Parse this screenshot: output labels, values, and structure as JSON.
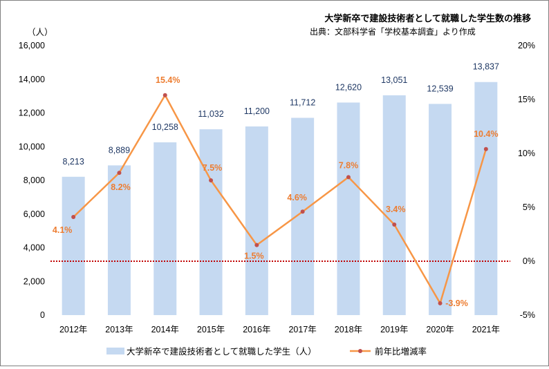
{
  "chart_data": {
    "type": "bar",
    "title": "大学新卒で建設技術者として就職した学生数の推移",
    "subtitle": "出典：文部科学省「学校基本調査」より作成",
    "y_unit_label": "（人）",
    "categories": [
      "2012年",
      "2013年",
      "2014年",
      "2015年",
      "2016年",
      "2017年",
      "2018年",
      "2019年",
      "2020年",
      "2021年"
    ],
    "series": [
      {
        "name": "大学新卒で建設技術者として就職した学生（人）",
        "type": "bar",
        "axis": "left",
        "color": "#c5d9f1",
        "values": [
          8213,
          8889,
          10258,
          11032,
          11200,
          11712,
          12620,
          13051,
          12539,
          13837
        ],
        "labels": [
          "8,213",
          "8,889",
          "10,258",
          "11,032",
          "11,200",
          "11,712",
          "12,620",
          "13,051",
          "12,539",
          "13,837"
        ]
      },
      {
        "name": "前年比増減率",
        "type": "line",
        "axis": "right",
        "color": "#f79646",
        "marker_color": "#c0504d",
        "label_color": "#ed7d31",
        "values": [
          4.1,
          8.2,
          15.4,
          7.5,
          1.5,
          4.6,
          7.8,
          3.4,
          -3.9,
          10.4
        ],
        "labels": [
          "4.1%",
          "8.2%",
          "15.4%",
          "7.5%",
          "1.5%",
          "4.6%",
          "7.8%",
          "3.4%",
          "-3.9%",
          "10.4%"
        ]
      }
    ],
    "y_left": {
      "range": [
        0,
        16000
      ],
      "ticks": [
        0,
        2000,
        4000,
        6000,
        8000,
        10000,
        12000,
        14000,
        16000
      ],
      "tick_labels": [
        "0",
        "2,000",
        "4,000",
        "6,000",
        "8,000",
        "10,000",
        "12,000",
        "14,000",
        "16,000"
      ]
    },
    "y_right": {
      "range": [
        -5,
        20
      ],
      "ticks": [
        -5,
        0,
        5,
        10,
        15,
        20
      ],
      "tick_labels": [
        "-5%",
        "0%",
        "5%",
        "10%",
        "15%",
        "20%"
      ]
    },
    "zero_reference_line": {
      "value": 0,
      "axis": "right",
      "style": "dotted",
      "color": "#c00000"
    },
    "grid": false,
    "legend_position": "bottom"
  }
}
